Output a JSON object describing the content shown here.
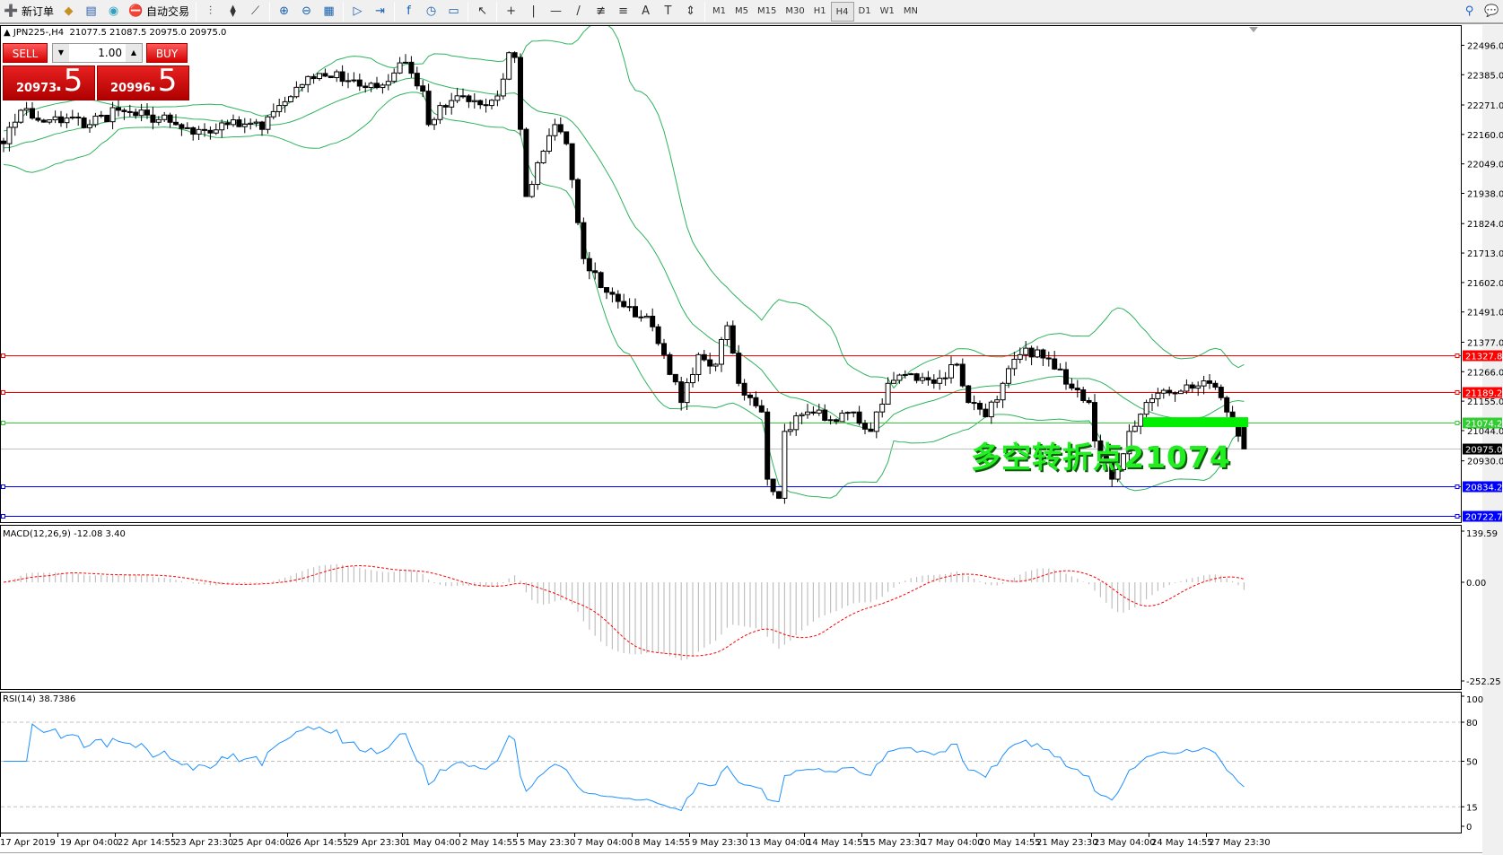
{
  "toolbar": {
    "items": [
      {
        "icon": "new-order-icon",
        "glyph": "➕",
        "label": "新订单"
      },
      {
        "icon": "history-center-icon",
        "glyph": "◆"
      },
      {
        "icon": "market-watch-icon",
        "glyph": "▤"
      },
      {
        "icon": "signals-icon",
        "glyph": "◉"
      },
      {
        "icon": "auto-trading-icon",
        "glyph": "⛔",
        "label": "自动交易"
      }
    ],
    "chart_tools": [
      {
        "icon": "bar-chart-icon",
        "glyph": "⫶"
      },
      {
        "icon": "candlestick-icon",
        "glyph": "⧫"
      },
      {
        "icon": "line-chart-icon",
        "glyph": "⟋"
      },
      {
        "icon": "zoom-in-icon",
        "glyph": "⊕"
      },
      {
        "icon": "zoom-out-icon",
        "glyph": "⊖"
      },
      {
        "icon": "tile-windows-icon",
        "glyph": "▦"
      },
      {
        "icon": "auto-scroll-icon",
        "glyph": "▷"
      },
      {
        "icon": "chart-shift-icon",
        "glyph": "⇥"
      },
      {
        "icon": "indicators-icon",
        "glyph": "f"
      },
      {
        "icon": "periods-icon",
        "glyph": "◷"
      },
      {
        "icon": "templates-icon",
        "glyph": "▭"
      },
      {
        "icon": "cursor-icon",
        "glyph": "↖"
      },
      {
        "icon": "crosshair-icon",
        "glyph": "+"
      },
      {
        "icon": "vertical-line-icon",
        "glyph": "|"
      },
      {
        "icon": "horizontal-line-icon",
        "glyph": "—"
      },
      {
        "icon": "trendline-icon",
        "glyph": "/"
      },
      {
        "icon": "fibonacci-fan-icon",
        "glyph": "≢"
      },
      {
        "icon": "fibonacci-retracement-icon",
        "glyph": "≡"
      },
      {
        "icon": "text-icon",
        "glyph": "A"
      },
      {
        "icon": "text-label-icon",
        "glyph": "T"
      },
      {
        "icon": "arrows-icon",
        "glyph": "⇕"
      }
    ],
    "timeframes": [
      "M1",
      "M5",
      "M15",
      "M30",
      "H1",
      "H4",
      "D1",
      "W1",
      "MN"
    ],
    "active_timeframe": "H4"
  },
  "header": {
    "symbol": "JPN225-,H4",
    "ohlc": "21077.5 21087.5 20975.0 20975.0",
    "open": 21077.5,
    "high": 21087.5,
    "low": 20975.0,
    "close": 20975.0
  },
  "one_click": {
    "sell_label": "SELL",
    "buy_label": "BUY",
    "lot": "1.00",
    "sell_price_small": "20973",
    "sell_price_big": ".5",
    "buy_price_small": "20996",
    "buy_price_big": ".5"
  },
  "annotation": "多空转折点21074",
  "colors": {
    "bull": "#ffffff",
    "bear": "#000000",
    "bands": "#2db35c",
    "macd_hist": "#c0c0c0",
    "macd_signal": "#ff0000",
    "rsi": "#1e90ff",
    "annotation": "#22ee22"
  },
  "price_axis": {
    "ticks": [
      "22496.0",
      "22385.0",
      "22271.0",
      "22160.0",
      "22049.0",
      "21938.0",
      "21824.0",
      "21713.0",
      "21602.0",
      "21491.0",
      "21377.0",
      "21266.0",
      "21155.0",
      "21044.0",
      "20930.0"
    ]
  },
  "levels": [
    {
      "price": "21327.8",
      "color": "#ff0000",
      "text": "#ffffff"
    },
    {
      "price": "21189.2",
      "color": "#ff0000",
      "text": "#ffffff"
    },
    {
      "price": "21074.2",
      "color": "#33cc33",
      "text": "#ffffff"
    },
    {
      "price": "20975.0",
      "color": "#000000",
      "text": "#ffffff",
      "line": "#c0c0c0"
    },
    {
      "price": "20834.2",
      "color": "#0000ff",
      "text": "#ffffff"
    },
    {
      "price": "20722.7",
      "color": "#0000ff",
      "text": "#ffffff"
    }
  ],
  "pivot_zone": {
    "price": 21074
  },
  "chart_data": {
    "type": "candlestick",
    "price_path": [
      [
        0,
        22125
      ],
      [
        3,
        22251
      ],
      [
        8,
        22215
      ],
      [
        15,
        22197
      ],
      [
        20,
        22251
      ],
      [
        25,
        22233
      ],
      [
        30,
        22197
      ],
      [
        33,
        22161
      ],
      [
        40,
        22215
      ],
      [
        45,
        22179
      ],
      [
        48,
        22269
      ],
      [
        53,
        22378
      ],
      [
        58,
        22396
      ],
      [
        62,
        22342
      ],
      [
        67,
        22360
      ],
      [
        70,
        22432
      ],
      [
        73,
        22323
      ],
      [
        74,
        22197
      ],
      [
        76,
        22269
      ],
      [
        80,
        22305
      ],
      [
        84,
        22269
      ],
      [
        86,
        22305
      ],
      [
        88,
        22468
      ],
      [
        89,
        22450
      ],
      [
        91,
        21926
      ],
      [
        93,
        22053
      ],
      [
        96,
        22197
      ],
      [
        98,
        22125
      ],
      [
        101,
        21692
      ],
      [
        104,
        21583
      ],
      [
        108,
        21511
      ],
      [
        112,
        21475
      ],
      [
        115,
        21330
      ],
      [
        118,
        21150
      ],
      [
        121,
        21330
      ],
      [
        124,
        21294
      ],
      [
        126,
        21439
      ],
      [
        128,
        21222
      ],
      [
        130,
        21168
      ],
      [
        132,
        21114
      ],
      [
        133,
        20861
      ],
      [
        135,
        20789
      ],
      [
        136,
        21041
      ],
      [
        140,
        21114
      ],
      [
        145,
        21078
      ],
      [
        148,
        21114
      ],
      [
        151,
        21041
      ],
      [
        154,
        21222
      ],
      [
        158,
        21258
      ],
      [
        162,
        21222
      ],
      [
        166,
        21294
      ],
      [
        168,
        21150
      ],
      [
        171,
        21096
      ],
      [
        174,
        21222
      ],
      [
        177,
        21330
      ],
      [
        180,
        21348
      ],
      [
        183,
        21276
      ],
      [
        186,
        21204
      ],
      [
        189,
        21150
      ],
      [
        190,
        21005
      ],
      [
        193,
        20861
      ],
      [
        194,
        20897
      ],
      [
        196,
        21041
      ],
      [
        199,
        21150
      ],
      [
        203,
        21186
      ],
      [
        207,
        21204
      ],
      [
        210,
        21222
      ],
      [
        212,
        21168
      ],
      [
        213,
        21114
      ],
      [
        216,
        20975
      ]
    ],
    "time_labels": [
      "17 Apr 2019",
      "19 Apr 04:00",
      "22 Apr 14:55",
      "23 Apr 23:30",
      "25 Apr 04:00",
      "26 Apr 14:55",
      "29 Apr 23:30",
      "1 May 04:00",
      "2 May 14:55",
      "5 May 23:30",
      "7 May 04:00",
      "8 May 14:55",
      "9 May 23:30",
      "13 May 04:00",
      "14 May 14:55",
      "15 May 23:30",
      "17 May 04:00",
      "20 May 14:55",
      "21 May 23:30",
      "23 May 04:00",
      "24 May 14:55",
      "27 May 23:30"
    ]
  },
  "macd": {
    "label": "MACD(12,26,9) -12.08 3.40",
    "max": "139.59",
    "zero": "0.00",
    "min": "-252.25"
  },
  "rsi": {
    "label": "RSI(14) 38.7386",
    "ticks": [
      "100",
      "80",
      "50",
      "15",
      "0"
    ]
  }
}
